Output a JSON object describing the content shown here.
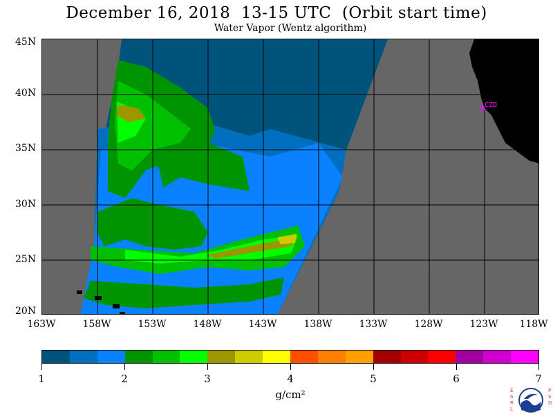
{
  "title": "December 16, 2018  13-15 UTC  (Orbit start time)",
  "subtitle": "Water Vapor (Wentz algorithm)",
  "map": {
    "lat_labels": [
      "45N",
      "40N",
      "35N",
      "30N",
      "25N",
      "20N"
    ],
    "lon_labels": [
      "163W",
      "158W",
      "153W",
      "148W",
      "143W",
      "138W",
      "133W",
      "128W",
      "123W",
      "118W"
    ],
    "place_label": "CZD",
    "colors": {
      "no_data": "#666666",
      "land": "#000000",
      "grid": "#000000",
      "place_marker": "#ff00ff"
    }
  },
  "colorbar": {
    "colors": [
      "#00537a",
      "#006fc0",
      "#0a82ff",
      "#009500",
      "#00c000",
      "#00ff00",
      "#9c9600",
      "#cdcc00",
      "#ffff00",
      "#ff5000",
      "#ff7d00",
      "#ff9f00",
      "#a50000",
      "#cd0000",
      "#ff0000",
      "#a000a0",
      "#cd00cd",
      "#ff00ff"
    ],
    "tick_labels": [
      "1",
      "2",
      "3",
      "4",
      "5",
      "6",
      "7"
    ],
    "units": "g/cm²"
  },
  "logo": {
    "left_letters": "ESRL",
    "right_letters": "PSD",
    "center_text": "NOAA"
  }
}
